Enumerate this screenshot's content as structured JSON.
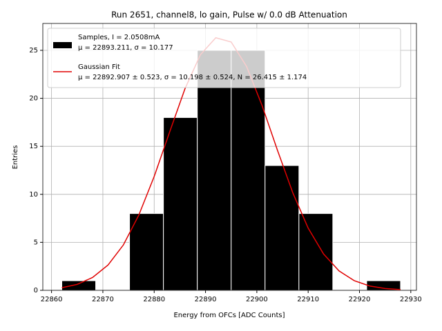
{
  "chart_data": {
    "type": "histogram",
    "title": "Run 2651, channel8, lo gain, Pulse w/ 0.0 dB Attenuation",
    "xlabel": "Energy from OFCs [ADC Counts]",
    "ylabel": "Entries",
    "bins": [
      22862,
      22868.6,
      22875.2,
      22881.8,
      22888.4,
      22895,
      22901.6,
      22908.2,
      22914.8,
      22921.4,
      22928
    ],
    "counts": [
      1,
      0,
      8,
      18,
      25,
      25,
      13,
      8,
      0,
      1
    ],
    "color": "#000000",
    "name": [
      "Samples, I = 2.0508mA",
      "μ = 22893.211, σ = 10.177"
    ],
    "fit": {
      "name": [
        "Gaussian Fit",
        "μ = 22892.907 ± 0.523, σ = 10.198 ± 0.524, N = 26.415 ± 1.174"
      ],
      "color": "#e00000",
      "x": [
        22862,
        22865,
        22868,
        22871,
        22874,
        22877,
        22880,
        22883,
        22886,
        22889,
        22892,
        22895,
        22898,
        22901,
        22904,
        22907,
        22910,
        22913,
        22916,
        22919,
        22922,
        22925,
        22928
      ],
      "values": [
        0.27,
        0.62,
        1.34,
        2.63,
        4.73,
        7.83,
        11.86,
        16.48,
        21.0,
        24.54,
        26.31,
        25.87,
        23.32,
        19.28,
        14.62,
        10.17,
        6.48,
        3.79,
        2.03,
        1.0,
        0.45,
        0.19,
        0.07
      ]
    },
    "xlim": [
      22858.3,
      22931.1
    ],
    "xticks": [
      22860,
      22870,
      22880,
      22890,
      22900,
      22910,
      22920,
      22930
    ],
    "ylim": [
      0,
      27.8
    ],
    "yticks": [
      0,
      5,
      10,
      15,
      20,
      25
    ],
    "grid": true,
    "legend": "upper left"
  }
}
